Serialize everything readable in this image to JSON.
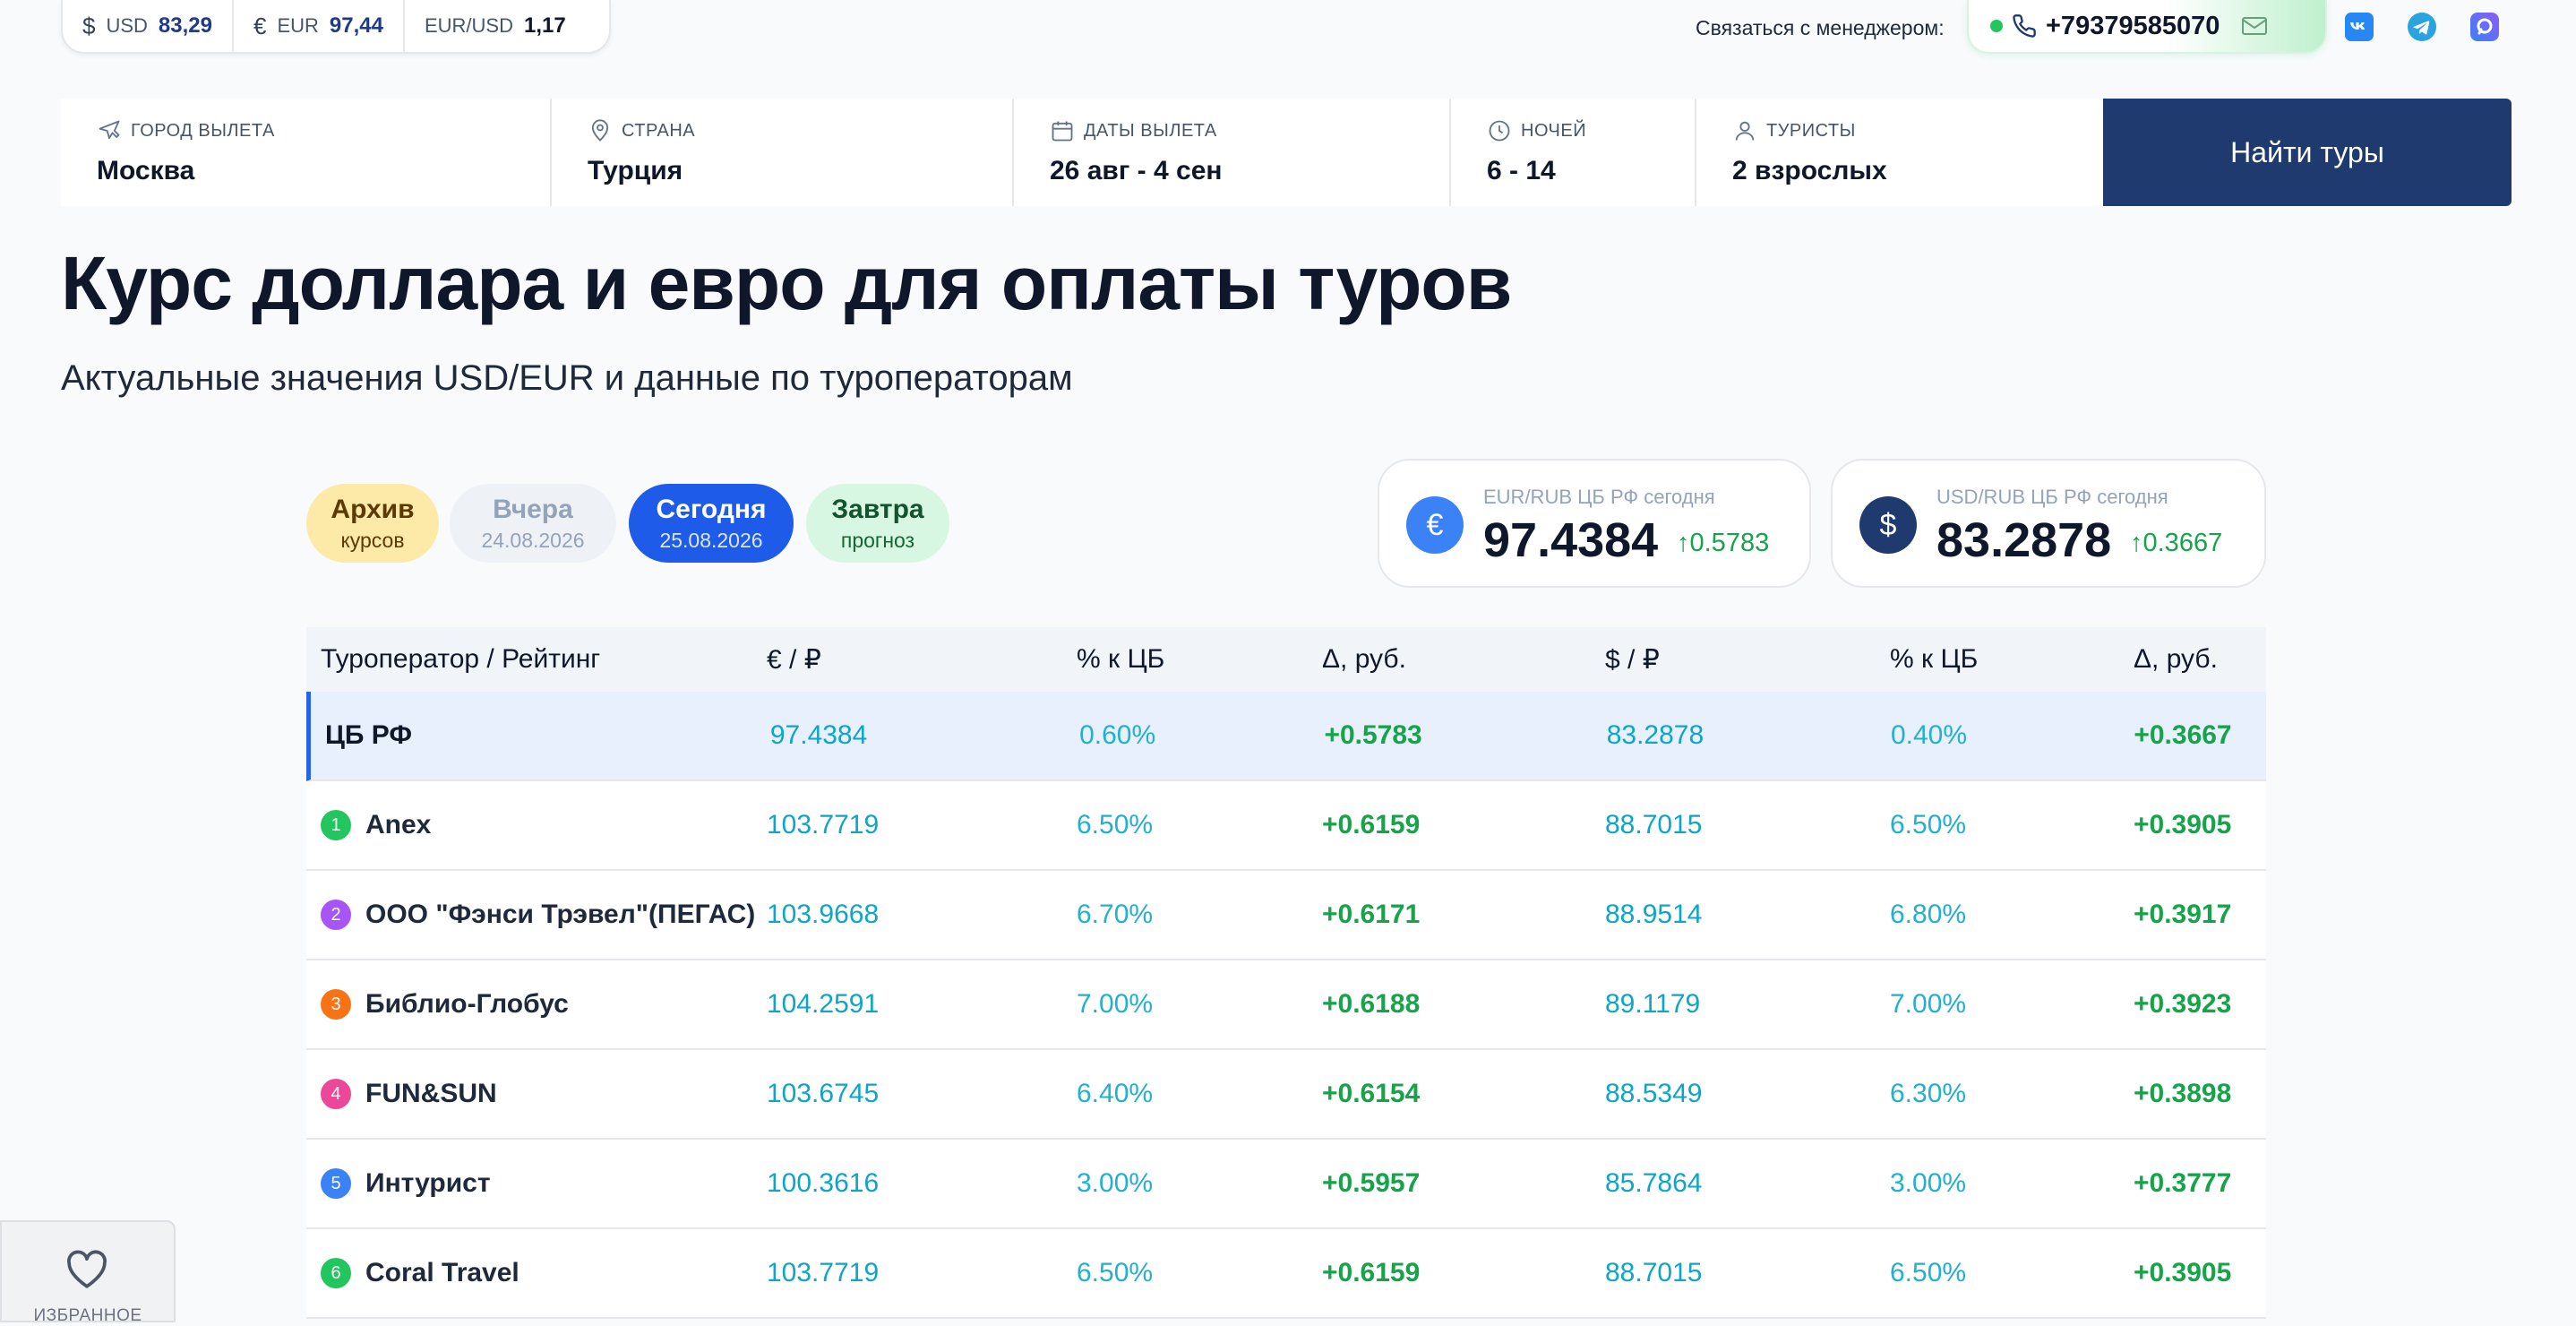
{
  "topbar": {
    "rates": [
      {
        "symbol": "$",
        "code": "USD",
        "value": "83,29"
      },
      {
        "symbol": "€",
        "code": "EUR",
        "value": "97,44"
      },
      {
        "code": "EUR/USD",
        "value": "1,17"
      }
    ],
    "contact_label": "Связаться с менеджером:",
    "phone": "+79379585070",
    "socials": [
      "vk-icon",
      "telegram-icon",
      "max-icon"
    ]
  },
  "search": {
    "city": {
      "label": "ГОРОД ВЫЛЕТА",
      "value": "Москва"
    },
    "country": {
      "label": "СТРАНА",
      "value": "Турция"
    },
    "dates": {
      "label": "ДАТЫ ВЫЛЕТА",
      "value": "26 авг - 4 сен"
    },
    "nights": {
      "label": "НОЧЕЙ",
      "value": "6 - 14"
    },
    "tourists": {
      "label": "ТУРИСТЫ",
      "value": "2 взрослых"
    },
    "button": "Найти туры"
  },
  "heading": {
    "title": "Курс доллара и евро для оплаты туров",
    "subtitle": "Актуальные значения USD/EUR и данные по туроператорам"
  },
  "tabs": [
    {
      "title": "Архив",
      "sub": "курсов"
    },
    {
      "title": "Вчера",
      "sub": "24.08.2026"
    },
    {
      "title": "Сегодня",
      "sub": "25.08.2026"
    },
    {
      "title": "Завтра",
      "sub": "прогноз"
    }
  ],
  "cards": {
    "eur": {
      "symbol": "€",
      "label": "EUR/RUB ЦБ РФ сегодня",
      "value": "97.4384",
      "delta": "0.5783"
    },
    "usd": {
      "symbol": "$",
      "label": "USD/RUB ЦБ РФ сегодня",
      "value": "83.2878",
      "delta": "0.3667"
    }
  },
  "table": {
    "headers": [
      "Туроператор / Рейтинг",
      "€ / ₽",
      "% к ЦБ",
      "Δ, руб.",
      "$ / ₽",
      "% к ЦБ",
      "Δ, руб."
    ],
    "rows": [
      {
        "rank": "",
        "name": "ЦБ РФ",
        "eur": "97.4384",
        "eur_pct": "0.60%",
        "eur_delta": "+0.5783",
        "usd": "83.2878",
        "usd_pct": "0.40%",
        "usd_delta": "+0.3667"
      },
      {
        "rank": "1",
        "name": "Anex",
        "eur": "103.7719",
        "eur_pct": "6.50%",
        "eur_delta": "+0.6159",
        "usd": "88.7015",
        "usd_pct": "6.50%",
        "usd_delta": "+0.3905",
        "badge_color": "#22c55e"
      },
      {
        "rank": "2",
        "name": "ООО \"Фэнси Трэвел\"(ПЕГАС)",
        "eur": "103.9668",
        "eur_pct": "6.70%",
        "eur_delta": "+0.6171",
        "usd": "88.9514",
        "usd_pct": "6.80%",
        "usd_delta": "+0.3917",
        "badge_color": "#a855f7"
      },
      {
        "rank": "3",
        "name": "Библио-Глобус",
        "eur": "104.2591",
        "eur_pct": "7.00%",
        "eur_delta": "+0.6188",
        "usd": "89.1179",
        "usd_pct": "7.00%",
        "usd_delta": "+0.3923",
        "badge_color": "#f97316"
      },
      {
        "rank": "4",
        "name": "FUN&SUN",
        "eur": "103.6745",
        "eur_pct": "6.40%",
        "eur_delta": "+0.6154",
        "usd": "88.5349",
        "usd_pct": "6.30%",
        "usd_delta": "+0.3898",
        "badge_color": "#ec4899"
      },
      {
        "rank": "5",
        "name": "Интурист",
        "eur": "100.3616",
        "eur_pct": "3.00%",
        "eur_delta": "+0.5957",
        "usd": "85.7864",
        "usd_pct": "3.00%",
        "usd_delta": "+0.3777",
        "badge_color": "#3b82f6"
      },
      {
        "rank": "6",
        "name": "Coral Travel",
        "eur": "103.7719",
        "eur_pct": "6.50%",
        "eur_delta": "+0.6159",
        "usd": "88.7015",
        "usd_pct": "6.50%",
        "usd_delta": "+0.3905",
        "badge_color": "#22c55e"
      }
    ]
  },
  "favorites": {
    "label": "ИЗБРАННОЕ"
  }
}
